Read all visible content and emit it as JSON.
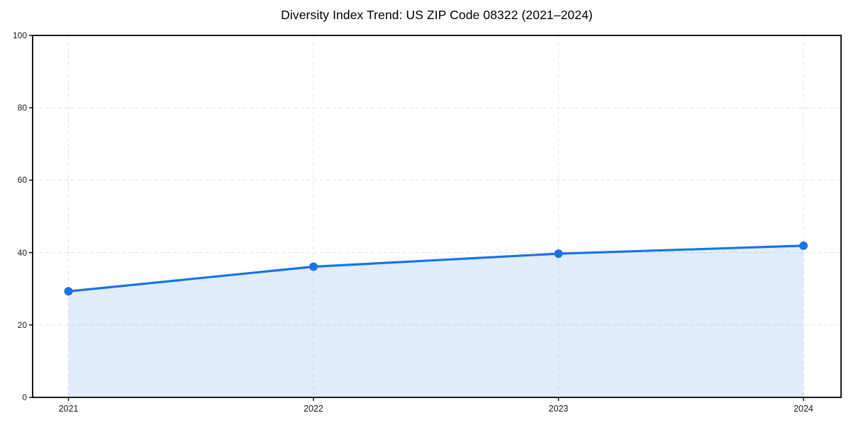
{
  "chart_data": {
    "type": "line",
    "title": "Diversity Index Trend: US ZIP Code 08322 (2021–2024)",
    "x": [
      "2021",
      "2022",
      "2023",
      "2024"
    ],
    "series": [
      {
        "name": "Diversity Index",
        "values": [
          29.3,
          36.1,
          39.7,
          41.9
        ]
      }
    ],
    "xlabel": "",
    "ylabel": "",
    "ylim": [
      0,
      100
    ],
    "yticks": [
      0,
      20,
      40,
      60,
      80,
      100
    ],
    "grid": true,
    "grid_style": "dashed",
    "legend": "none",
    "marker": "circle",
    "area_fill": true,
    "colors": {
      "line": "#1a73e8",
      "area": "rgba(26,115,232,0.13)",
      "grid": "#e3e3e3",
      "spine": "#000000",
      "text": "#1a1a1a",
      "background": "#ffffff"
    }
  }
}
